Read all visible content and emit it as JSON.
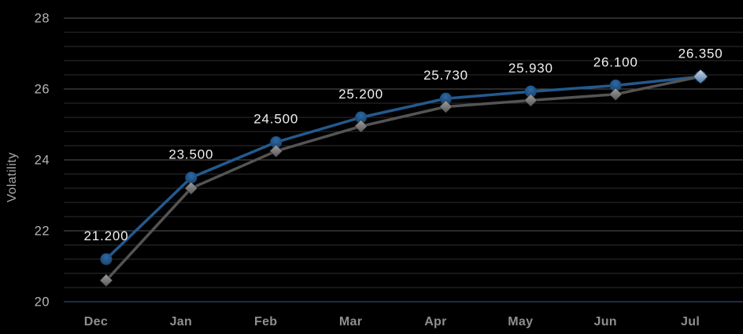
{
  "chart_data": {
    "type": "line",
    "title": "",
    "ylabel": "Volatility",
    "xlabel": "",
    "background": "#000000",
    "legend": "none",
    "categories": [
      "Dec",
      "Jan",
      "Feb",
      "Mar",
      "Apr",
      "May",
      "Jun",
      "Jul"
    ],
    "y_axis": {
      "min": 20,
      "max": 28,
      "major_unit": 2,
      "minor_unit": 0.4,
      "tick_labels": [
        "28",
        "26",
        "24",
        "22",
        "20"
      ]
    },
    "series": [
      {
        "name": "volatility-primary",
        "marker": "circle",
        "line_color": "#24598f",
        "marker_fill_top": "#2c6aa6",
        "marker_fill_bottom": "#173e66",
        "values": [
          21.2,
          23.5,
          24.5,
          25.2,
          25.73,
          25.93,
          26.1,
          26.35
        ],
        "data_labels": [
          "21.200",
          "23.500",
          "24.500",
          "25.200",
          "25.730",
          "25.930",
          "26.100",
          "26.350"
        ],
        "data_label_color": "#f0f0f0"
      },
      {
        "name": "volatility-secondary",
        "marker": "diamond",
        "line_color": "#545454",
        "marker_fill_top": "#9e9e9e",
        "marker_fill_bottom": "#565656",
        "last_marker_fill_top": "#cdd9e8",
        "last_marker_fill_bottom": "#4a79a8",
        "values": [
          20.6,
          23.2,
          24.25,
          24.95,
          25.5,
          25.68,
          25.85,
          26.35
        ],
        "data_labels": null
      }
    ],
    "grid": {
      "major_color": "#565656",
      "minor_color": "#2e2e2e",
      "axis_line_color": "#1f2b44"
    },
    "text_colors": {
      "y_tick": "#b5b5b5",
      "x_tick": "#8f8f8f",
      "data_label": "#f0f0f0"
    }
  }
}
